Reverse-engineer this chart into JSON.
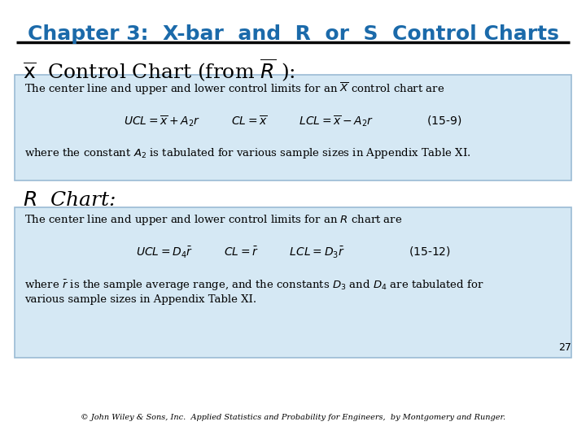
{
  "title_part1": "Chapter 3: ",
  "title_part2": "X-bar",
  "title_part3": " and ",
  "title_part4": "R",
  "title_part5": " or ",
  "title_part6": "S",
  "title_part7": " Control Charts",
  "title_color": "#1B6AAA",
  "title_fontsize": 18,
  "bg_color": "#FFFFFF",
  "box_fill_color": "#D5E8F4",
  "box_edge_color": "#9BBBD4",
  "section1_label_fontsize": 18,
  "section2_label_fontsize": 18,
  "footer": "© John Wiley & Sons, Inc.  Applied Statistics and Probability for Engineers,  by Montgomery and Runger.",
  "page_number": "27",
  "text_fontsize": 9.5,
  "formula_fontsize": 10
}
